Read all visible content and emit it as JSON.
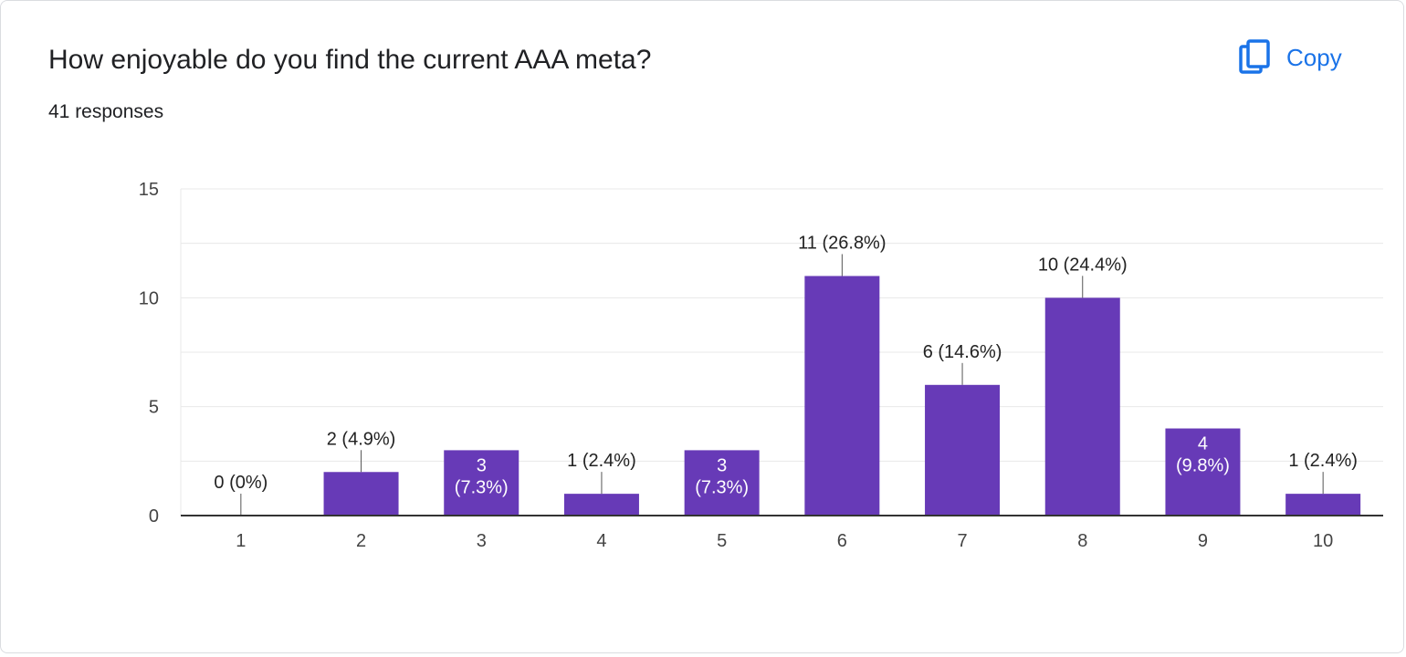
{
  "header": {
    "title": "How enjoyable do you find the current AAA meta?",
    "responses": "41 responses",
    "copy_label": "Copy",
    "copy_icon": "copy-icon"
  },
  "colors": {
    "bar": "#673ab7",
    "accent": "#1a73e8",
    "grid": "#e8e8e8",
    "axis": "#333333"
  },
  "chart_data": {
    "type": "bar",
    "title": "How enjoyable do you find the current AAA meta?",
    "xlabel": "",
    "ylabel": "",
    "ylim": [
      0,
      15
    ],
    "yticks": [
      "0",
      "5",
      "10",
      "15"
    ],
    "categories": [
      "1",
      "2",
      "3",
      "4",
      "5",
      "6",
      "7",
      "8",
      "9",
      "10"
    ],
    "values": [
      0,
      2,
      3,
      1,
      3,
      11,
      6,
      10,
      4,
      1
    ],
    "labels": [
      "0 (0%)",
      "2 (4.9%)",
      "3 (7.3%)",
      "1 (2.4%)",
      "3 (7.3%)",
      "11 (26.8%)",
      "6 (14.6%)",
      "10 (24.4%)",
      "4 (9.8%)",
      "1 (2.4%)"
    ],
    "inside": [
      false,
      false,
      true,
      false,
      true,
      false,
      false,
      false,
      true,
      false
    ]
  }
}
